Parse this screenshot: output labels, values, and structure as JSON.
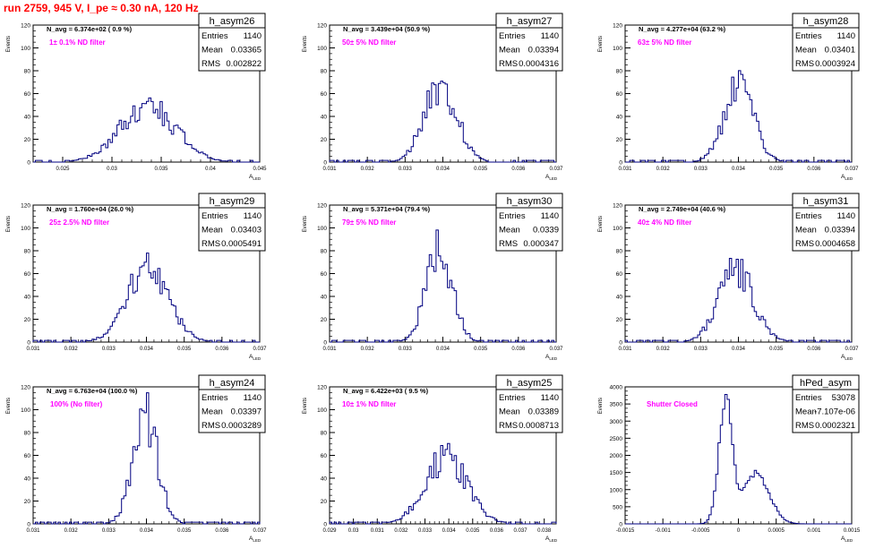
{
  "page_title": "run 2759,   945 V, I_pe ≈ 0.30 nA, 120 Hz",
  "colors": {
    "title": "#ff0000",
    "annotation": "#ff00ff",
    "histogram": "#000080"
  },
  "chart_data": [
    {
      "type": "bar",
      "name": "h_asym26",
      "ylabel": "Events",
      "xlabel": "A_LED",
      "navg_text": "N_avg = 6.374e+02 ( 0.9 %)",
      "filter_text": "1± 0.1% ND filter",
      "stats": [
        [
          "Entries",
          "1140"
        ],
        [
          "Mean",
          "0.03365"
        ],
        [
          "RMS",
          "0.002822"
        ]
      ],
      "xlim": [
        0.022,
        0.045
      ],
      "ylim": [
        0,
        120
      ],
      "xticks": [
        0.025,
        0.03,
        0.035,
        0.04,
        0.045
      ],
      "xtick_labels": [
        "0.025",
        "0.03",
        "0.035",
        "0.04",
        "0.045"
      ],
      "yticks": [
        0,
        20,
        40,
        60,
        80,
        100,
        120
      ],
      "mean": 0.03365,
      "rms": 0.002822,
      "peak": 50
    },
    {
      "type": "bar",
      "name": "h_asym27",
      "ylabel": "Events",
      "xlabel": "A_LED",
      "navg_text": "N_avg = 3.439e+04 (50.9 %)",
      "filter_text": "50± 5% ND filter",
      "stats": [
        [
          "Entries",
          "1140"
        ],
        [
          "Mean",
          "0.03394"
        ],
        [
          "RMS",
          "0.0004316"
        ]
      ],
      "xlim": [
        0.031,
        0.037
      ],
      "ylim": [
        0,
        120
      ],
      "xticks": [
        0.031,
        0.032,
        0.033,
        0.034,
        0.035,
        0.036,
        0.037
      ],
      "xtick_labels": [
        "0.031",
        "0.032",
        "0.033",
        "0.034",
        "0.035",
        "0.036",
        "0.037"
      ],
      "yticks": [
        0,
        20,
        40,
        60,
        80,
        100,
        120
      ],
      "mean": 0.03394,
      "rms": 0.0004316,
      "peak": 69
    },
    {
      "type": "bar",
      "name": "h_asym28",
      "ylabel": "Events",
      "xlabel": "A_LED",
      "navg_text": "N_avg = 4.277e+04 (63.2 %)",
      "filter_text": "63± 5% ND filter",
      "stats": [
        [
          "Entries",
          "1140"
        ],
        [
          "Mean",
          "0.03401"
        ],
        [
          "RMS",
          "0.0003924"
        ]
      ],
      "xlim": [
        0.031,
        0.037
      ],
      "ylim": [
        0,
        120
      ],
      "xticks": [
        0.031,
        0.032,
        0.033,
        0.034,
        0.035,
        0.036,
        0.037
      ],
      "xtick_labels": [
        "0.031",
        "0.032",
        "0.033",
        "0.034",
        "0.035",
        "0.036",
        "0.037"
      ],
      "yticks": [
        0,
        20,
        40,
        60,
        80,
        100,
        120
      ],
      "mean": 0.03401,
      "rms": 0.0003924,
      "peak": 67
    },
    {
      "type": "bar",
      "name": "h_asym29",
      "ylabel": "Events",
      "xlabel": "A_LED",
      "navg_text": "N_avg = 1.760e+04 (26.0 %)",
      "filter_text": "25± 2.5% ND filter",
      "stats": [
        [
          "Entries",
          "1140"
        ],
        [
          "Mean",
          "0.03403"
        ],
        [
          "RMS",
          "0.0005491"
        ]
      ],
      "xlim": [
        0.031,
        0.037
      ],
      "ylim": [
        0,
        120
      ],
      "xticks": [
        0.031,
        0.032,
        0.033,
        0.034,
        0.035,
        0.036,
        0.037
      ],
      "xtick_labels": [
        "0.031",
        "0.032",
        "0.033",
        "0.034",
        "0.035",
        "0.036",
        "0.037"
      ],
      "yticks": [
        0,
        20,
        40,
        60,
        80,
        100,
        120
      ],
      "mean": 0.03403,
      "rms": 0.0005491,
      "peak": 66
    },
    {
      "type": "bar",
      "name": "h_asym30",
      "ylabel": "Events",
      "xlabel": "A_LED",
      "navg_text": "N_avg = 5.371e+04 (79.4 %)",
      "filter_text": "79± 5% ND filter",
      "stats": [
        [
          "Entries",
          "1140"
        ],
        [
          "Mean",
          "0.0339"
        ],
        [
          "RMS",
          "0.000347"
        ]
      ],
      "xlim": [
        0.031,
        0.037
      ],
      "ylim": [
        0,
        120
      ],
      "xticks": [
        0.031,
        0.032,
        0.033,
        0.034,
        0.035,
        0.036,
        0.037
      ],
      "xtick_labels": [
        "0.031",
        "0.032",
        "0.033",
        "0.034",
        "0.035",
        "0.036",
        "0.037"
      ],
      "yticks": [
        0,
        20,
        40,
        60,
        80,
        100,
        120
      ],
      "mean": 0.0339,
      "rms": 0.000347,
      "peak": 84
    },
    {
      "type": "bar",
      "name": "h_asym31",
      "ylabel": "Events",
      "xlabel": "A_LED",
      "navg_text": "N_avg = 2.749e+04 (40.6 %)",
      "filter_text": "40± 4% ND filter",
      "stats": [
        [
          "Entries",
          "1140"
        ],
        [
          "Mean",
          "0.03394"
        ],
        [
          "RMS",
          "0.0004658"
        ]
      ],
      "xlim": [
        0.031,
        0.037
      ],
      "ylim": [
        0,
        120
      ],
      "xticks": [
        0.031,
        0.032,
        0.033,
        0.034,
        0.035,
        0.036,
        0.037
      ],
      "xtick_labels": [
        "0.031",
        "0.032",
        "0.033",
        "0.034",
        "0.035",
        "0.036",
        "0.037"
      ],
      "yticks": [
        0,
        20,
        40,
        60,
        80,
        100,
        120
      ],
      "mean": 0.03394,
      "rms": 0.0004658,
      "peak": 64
    },
    {
      "type": "bar",
      "name": "h_asym24",
      "ylabel": "Events",
      "xlabel": "A_LED",
      "navg_text": "N_avg = 6.763e+04 (100.0 %)",
      "filter_text": "100% (No filter)",
      "stats": [
        [
          "Entries",
          "1140"
        ],
        [
          "Mean",
          "0.03397"
        ],
        [
          "RMS",
          "0.0003289"
        ]
      ],
      "xlim": [
        0.031,
        0.037
      ],
      "ylim": [
        0,
        120
      ],
      "xticks": [
        0.031,
        0.032,
        0.033,
        0.034,
        0.035,
        0.036,
        0.037
      ],
      "xtick_labels": [
        "0.031",
        "0.032",
        "0.033",
        "0.034",
        "0.035",
        "0.036",
        "0.037"
      ],
      "yticks": [
        0,
        20,
        40,
        60,
        80,
        100,
        120
      ],
      "mean": 0.03397,
      "rms": 0.0003289,
      "peak": 96
    },
    {
      "type": "bar",
      "name": "h_asym25",
      "ylabel": "Events",
      "xlabel": "A_LED",
      "navg_text": "N_avg = 6.422e+03 ( 9.5 %)",
      "filter_text": "10± 1% ND filter",
      "stats": [
        [
          "Entries",
          "1140"
        ],
        [
          "Mean",
          "0.03389"
        ],
        [
          "RMS",
          "0.0008713"
        ]
      ],
      "xlim": [
        0.029,
        0.0385
      ],
      "ylim": [
        0,
        120
      ],
      "xticks": [
        0.029,
        0.03,
        0.031,
        0.032,
        0.033,
        0.034,
        0.035,
        0.036,
        0.037,
        0.038
      ],
      "xtick_labels": [
        "0.029",
        "0.03",
        "0.031",
        "0.032",
        "0.033",
        "0.034",
        "0.035",
        "0.036",
        "0.037",
        "0.038"
      ],
      "yticks": [
        0,
        20,
        40,
        60,
        80,
        100,
        120
      ],
      "mean": 0.03389,
      "rms": 0.0008713,
      "peak": 60
    },
    {
      "type": "bar",
      "name": "hPed_asym",
      "ylabel": "Events",
      "xlabel": "A_LED",
      "navg_text": "",
      "filter_text": "Shutter Closed",
      "stats": [
        [
          "Entries",
          "53078"
        ],
        [
          "Mean",
          "-7.107e-06"
        ],
        [
          "RMS",
          "0.0002321"
        ]
      ],
      "xlim": [
        -0.0015,
        0.0015
      ],
      "ylim": [
        0,
        4000
      ],
      "xticks": [
        -0.0015,
        -0.001,
        -0.0005,
        0,
        0.0005,
        0.001,
        0.0015
      ],
      "xtick_labels": [
        "-0.0015",
        "-0.001",
        "-0.0005",
        "0",
        "0.0005",
        "0.001",
        "0.0015"
      ],
      "yticks": [
        0,
        500,
        1000,
        1500,
        2000,
        2500,
        3000,
        3500,
        4000
      ],
      "mean": -7.107e-06,
      "rms": 0.0002321,
      "peak": 3500,
      "pedestal_shape": true
    }
  ]
}
